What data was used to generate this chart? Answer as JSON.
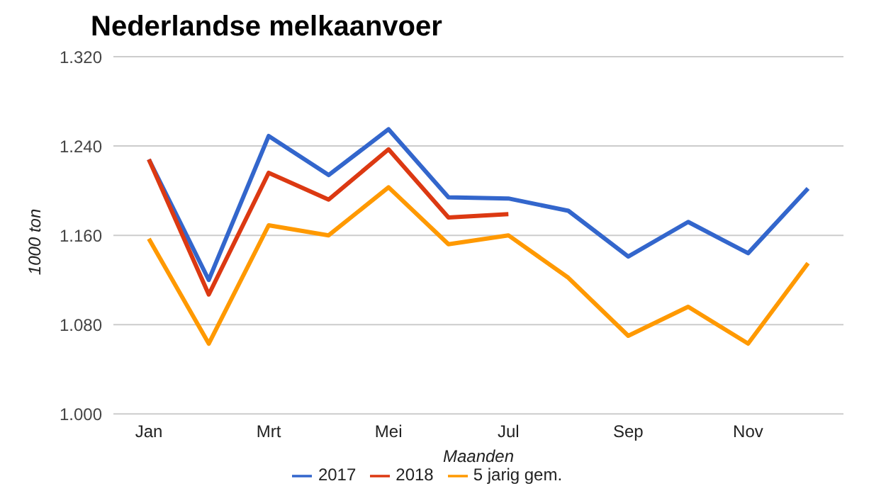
{
  "chart_data": {
    "type": "line",
    "title": "Nederlandse melkaanvoer",
    "xlabel": "Maanden",
    "ylabel": "1000 ton",
    "categories": [
      "Jan",
      null,
      "Mrt",
      null,
      "Mei",
      null,
      "Jul",
      null,
      "Sep",
      null,
      "Nov",
      null
    ],
    "series": [
      {
        "name": "2017",
        "color": "#3366cc",
        "values": [
          1228,
          1120,
          1249,
          1214,
          1255,
          1194,
          1193,
          1182,
          1141,
          1172,
          1144,
          1202
        ]
      },
      {
        "name": "2018",
        "color": "#dc3912",
        "values": [
          1228,
          1107,
          1216,
          1192,
          1237,
          1176,
          1179,
          null,
          null,
          null,
          null,
          null
        ]
      },
      {
        "name": "5 jarig gem.",
        "color": "#ff9900",
        "values": [
          1157,
          1063,
          1169,
          1160,
          1203,
          1152,
          1160,
          1122,
          1070,
          1096,
          1063,
          1135
        ]
      }
    ],
    "ylim": [
      1000,
      1320
    ],
    "yticks": [
      {
        "value": 1000,
        "label": "1.000"
      },
      {
        "value": 1080,
        "label": "1.080"
      },
      {
        "value": 1160,
        "label": "1.160"
      },
      {
        "value": 1240,
        "label": "1.240"
      },
      {
        "value": 1320,
        "label": "1.320"
      }
    ],
    "grid": "y",
    "legend": "bottom",
    "marker": "none",
    "line_style": "solid"
  }
}
